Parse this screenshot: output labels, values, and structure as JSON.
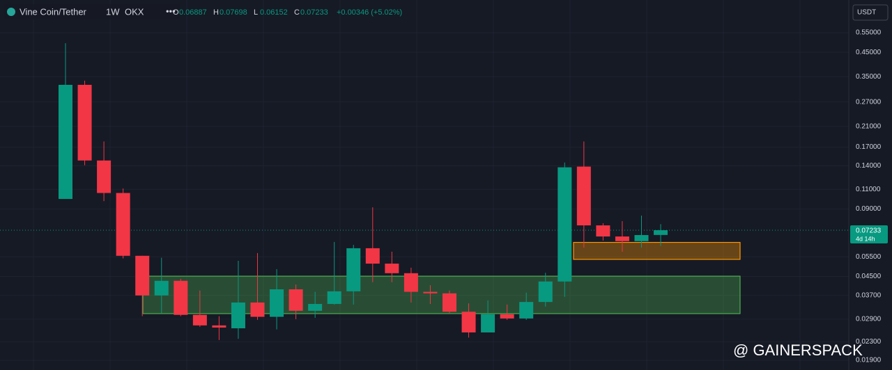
{
  "chart_data": {
    "type": "candlestick",
    "symbol": "Vine Coin/Tether",
    "interval": "1W",
    "exchange": "OKX",
    "ohlc_labels": [
      "O",
      "H",
      "L",
      "C"
    ],
    "change": "+0.00346 (+5.02%)",
    "currency": "USDT",
    "countdown": "4d 14h",
    "watermark": "@ GAINERSPACK",
    "log_scale": true,
    "up_color": "#089981",
    "down_color": "#f23645",
    "ylim": [
      0.0172,
      0.727
    ],
    "yticks": [
      {
        "value": 0.019,
        "label": "0.01900"
      },
      {
        "value": 0.023,
        "label": "0.02300"
      },
      {
        "value": 0.029,
        "label": "0.02900"
      },
      {
        "value": 0.037,
        "label": "0.03700"
      },
      {
        "value": 0.045,
        "label": "0.04500"
      },
      {
        "value": 0.055,
        "label": "0.05500"
      },
      {
        "value": 0.09,
        "label": "0.09000"
      },
      {
        "value": 0.11,
        "label": "0.11000"
      },
      {
        "value": 0.14,
        "label": "0.14000"
      },
      {
        "value": 0.17,
        "label": "0.17000"
      },
      {
        "value": 0.21,
        "label": "0.21000"
      },
      {
        "value": 0.27,
        "label": "0.27000"
      },
      {
        "value": 0.35,
        "label": "0.35000"
      },
      {
        "value": 0.45,
        "label": "0.45000"
      },
      {
        "value": 0.55,
        "label": "0.55000"
      }
    ],
    "open": [
      0.0997,
      0.322,
      0.148,
      0.106,
      0.0556,
      0.037,
      0.043,
      0.0303,
      0.0272,
      0.0264,
      0.0344,
      0.0297,
      0.0394,
      0.0316,
      0.0339,
      0.0386,
      0.0601,
      0.0513,
      0.0465,
      0.0384,
      0.0378,
      0.0313,
      0.0253,
      0.0305,
      0.0292,
      0.0346,
      0.0427,
      0.139,
      0.076,
      0.0678,
      0.0646,
      0.06887
    ],
    "high": [
      0.494,
      0.336,
      0.18,
      0.111,
      0.0556,
      0.0545,
      0.0439,
      0.0389,
      0.0299,
      0.0528,
      0.0572,
      0.0485,
      0.0414,
      0.0384,
      0.0641,
      0.0622,
      0.0915,
      0.058,
      0.0492,
      0.0411,
      0.0389,
      0.0341,
      0.0351,
      0.0337,
      0.0381,
      0.0467,
      0.145,
      0.18,
      0.0777,
      0.0794,
      0.084,
      0.07698
    ],
    "low": [
      0.0997,
      0.141,
      0.0975,
      0.0541,
      0.0299,
      0.0309,
      0.0299,
      0.0268,
      0.0234,
      0.0237,
      0.0288,
      0.0261,
      0.029,
      0.0294,
      0.0337,
      0.0337,
      0.0424,
      0.0424,
      0.0344,
      0.0339,
      0.0309,
      0.024,
      0.0253,
      0.0288,
      0.0288,
      0.033,
      0.0365,
      0.0605,
      0.065,
      0.058,
      0.0605,
      0.06152
    ],
    "close": [
      0.322,
      0.148,
      0.106,
      0.0556,
      0.037,
      0.043,
      0.0303,
      0.0272,
      0.0266,
      0.0344,
      0.0297,
      0.0394,
      0.0316,
      0.0339,
      0.0386,
      0.0601,
      0.0513,
      0.0465,
      0.0384,
      0.0378,
      0.0313,
      0.0253,
      0.0305,
      0.0292,
      0.0346,
      0.0427,
      0.138,
      0.076,
      0.0678,
      0.0646,
      0.0688,
      0.07233
    ],
    "zones": [
      {
        "top": 0.0451,
        "bottom": 0.0307,
        "color": "#4caf50"
      },
      {
        "top": 0.0638,
        "bottom": 0.0536,
        "color": "#ff9800"
      }
    ]
  }
}
